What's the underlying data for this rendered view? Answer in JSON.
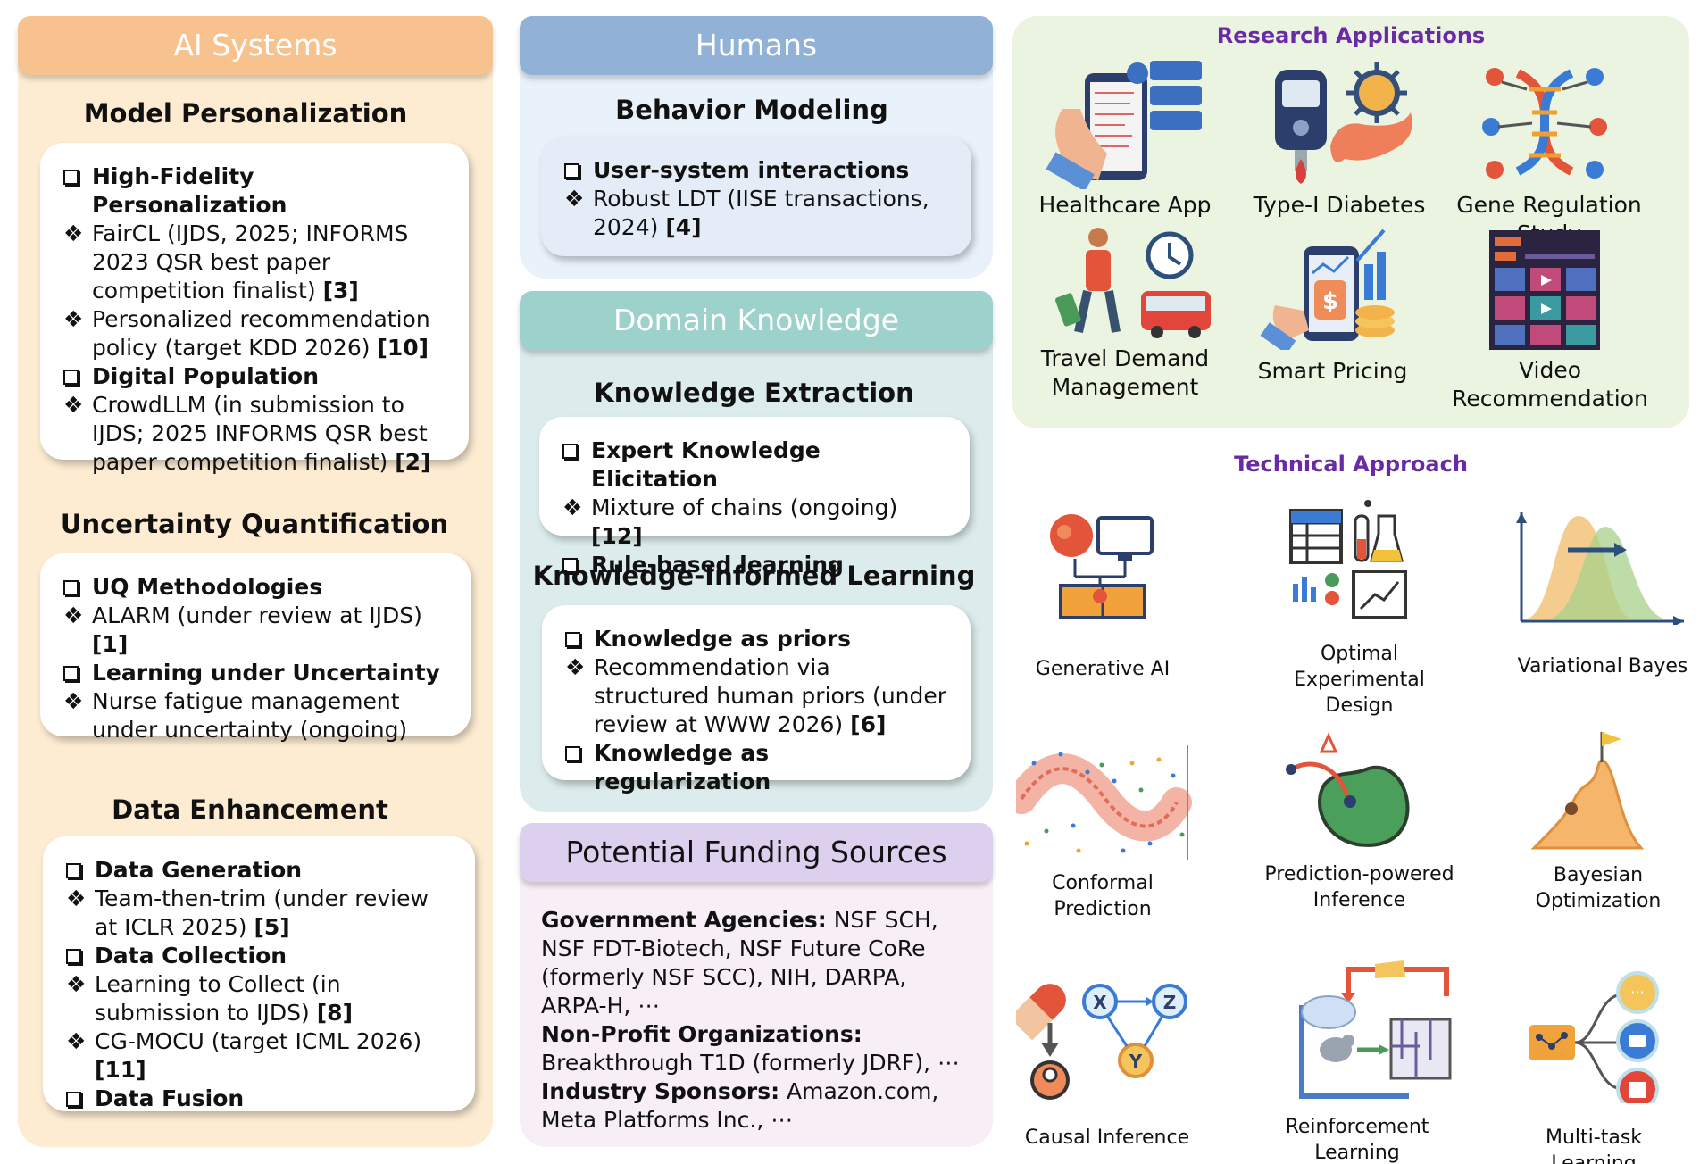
{
  "ai": {
    "header": "AI Systems",
    "model": {
      "title": "Model Personalization",
      "items": [
        {
          "type": "box",
          "text": "High-Fidelity Personalization"
        },
        {
          "type": "diamond",
          "text": "FairCL (IJDS, 2025; INFORMS 2023 QSR best paper competition finalist)",
          "ref": "[3]"
        },
        {
          "type": "diamond",
          "text": "Personalized recommendation policy (target KDD 2026)",
          "ref": "[10]"
        },
        {
          "type": "box",
          "text": "Digital Population"
        },
        {
          "type": "diamond",
          "text": "CrowdLLM (in submission to IJDS; 2025 INFORMS QSR best paper competition finalist)",
          "ref": "[2]"
        }
      ]
    },
    "uq": {
      "title": "Uncertainty Quantification",
      "items": [
        {
          "type": "box",
          "text": "UQ Methodologies"
        },
        {
          "type": "diamond",
          "text": "ALARM (under review at IJDS)",
          "ref": "[1]"
        },
        {
          "type": "box",
          "text": "Learning under Uncertainty"
        },
        {
          "type": "diamond",
          "text": "Nurse fatigue management under uncertainty (ongoing)",
          "ref": ""
        }
      ]
    },
    "data": {
      "title": "Data Enhancement",
      "items": [
        {
          "type": "box",
          "text": "Data Generation"
        },
        {
          "type": "diamond",
          "text": "Team-then-trim (under review at ICLR 2025)",
          "ref": "[5]"
        },
        {
          "type": "box",
          "text": "Data Collection"
        },
        {
          "type": "diamond",
          "text": "Learning to Collect (in submission to IJDS)",
          "ref": "[8]"
        },
        {
          "type": "diamond",
          "text": "CG-MOCU (target ICML 2026)",
          "ref": "[11]"
        },
        {
          "type": "box",
          "text": "Data Fusion"
        }
      ]
    }
  },
  "humans": {
    "header": "Humans",
    "title": "Behavior Modeling",
    "items": [
      {
        "type": "box",
        "text": "User-system interactions"
      },
      {
        "type": "diamond",
        "text": "Robust LDT (IISE transactions, 2024)",
        "ref": "[4]"
      }
    ]
  },
  "domain": {
    "header": "Domain Knowledge",
    "extraction": {
      "title": "Knowledge Extraction",
      "items": [
        {
          "type": "box",
          "text": "Expert Knowledge Elicitation"
        },
        {
          "type": "diamond",
          "text": "Mixture of chains (ongoing)",
          "ref": "[12]"
        },
        {
          "type": "box",
          "text": "Rule-based learning"
        }
      ]
    },
    "informed": {
      "title": "Knowledge-Informed Learning",
      "items": [
        {
          "type": "box",
          "text": "Knowledge as priors"
        },
        {
          "type": "diamond",
          "text": "Recommendation via structured human priors (under review at WWW 2026)",
          "ref": "[6]"
        },
        {
          "type": "box",
          "text": "Knowledge as regularization"
        }
      ]
    }
  },
  "funding": {
    "header": "Potential Funding Sources",
    "gov_label": "Government Agencies:",
    "gov_text": "NSF SCH, NSF FDT-Biotech, NSF Future CoRe (formerly NSF SCC), NIH, DARPA, ARPA-H, ⋯",
    "np_label": "Non-Profit Organizations:",
    "np_text": "Breakthrough T1D (formerly JDRF), ⋯",
    "ind_label": "Industry Sponsors:",
    "ind_text": "Amazon.com, Meta Platforms Inc., ⋯"
  },
  "research": {
    "title": "Research Applications",
    "apps": [
      "Healthcare App",
      "Type-I Diabetes",
      "Gene Regulation Study",
      "Travel Demand Management",
      "Smart Pricing",
      "Video Recommendation"
    ]
  },
  "technical": {
    "title": "Technical Approach",
    "items": [
      "Generative AI",
      "Optimal Experimental Design",
      "Variational Bayes",
      "Conformal Prediction",
      "Prediction-powered Inference",
      "Bayesian Optimization",
      "Causal Inference",
      "Reinforcement Learning",
      "Multi-task Learning"
    ],
    "causal_nodes": [
      "X",
      "Z",
      "Y"
    ]
  },
  "colors": {
    "ai_panel": "#fdecd2",
    "ai_header": "#f7c28e",
    "humans_panel": "#e9f1fa",
    "humans_header": "#91b1d6",
    "domain_panel": "#dcecec",
    "domain_header": "#9dd1cc",
    "funding_panel": "#f8eef6",
    "funding_header": "#ddd0ee",
    "research_panel": "#eaf4e0",
    "accent_purple": "#6a2aa6"
  }
}
